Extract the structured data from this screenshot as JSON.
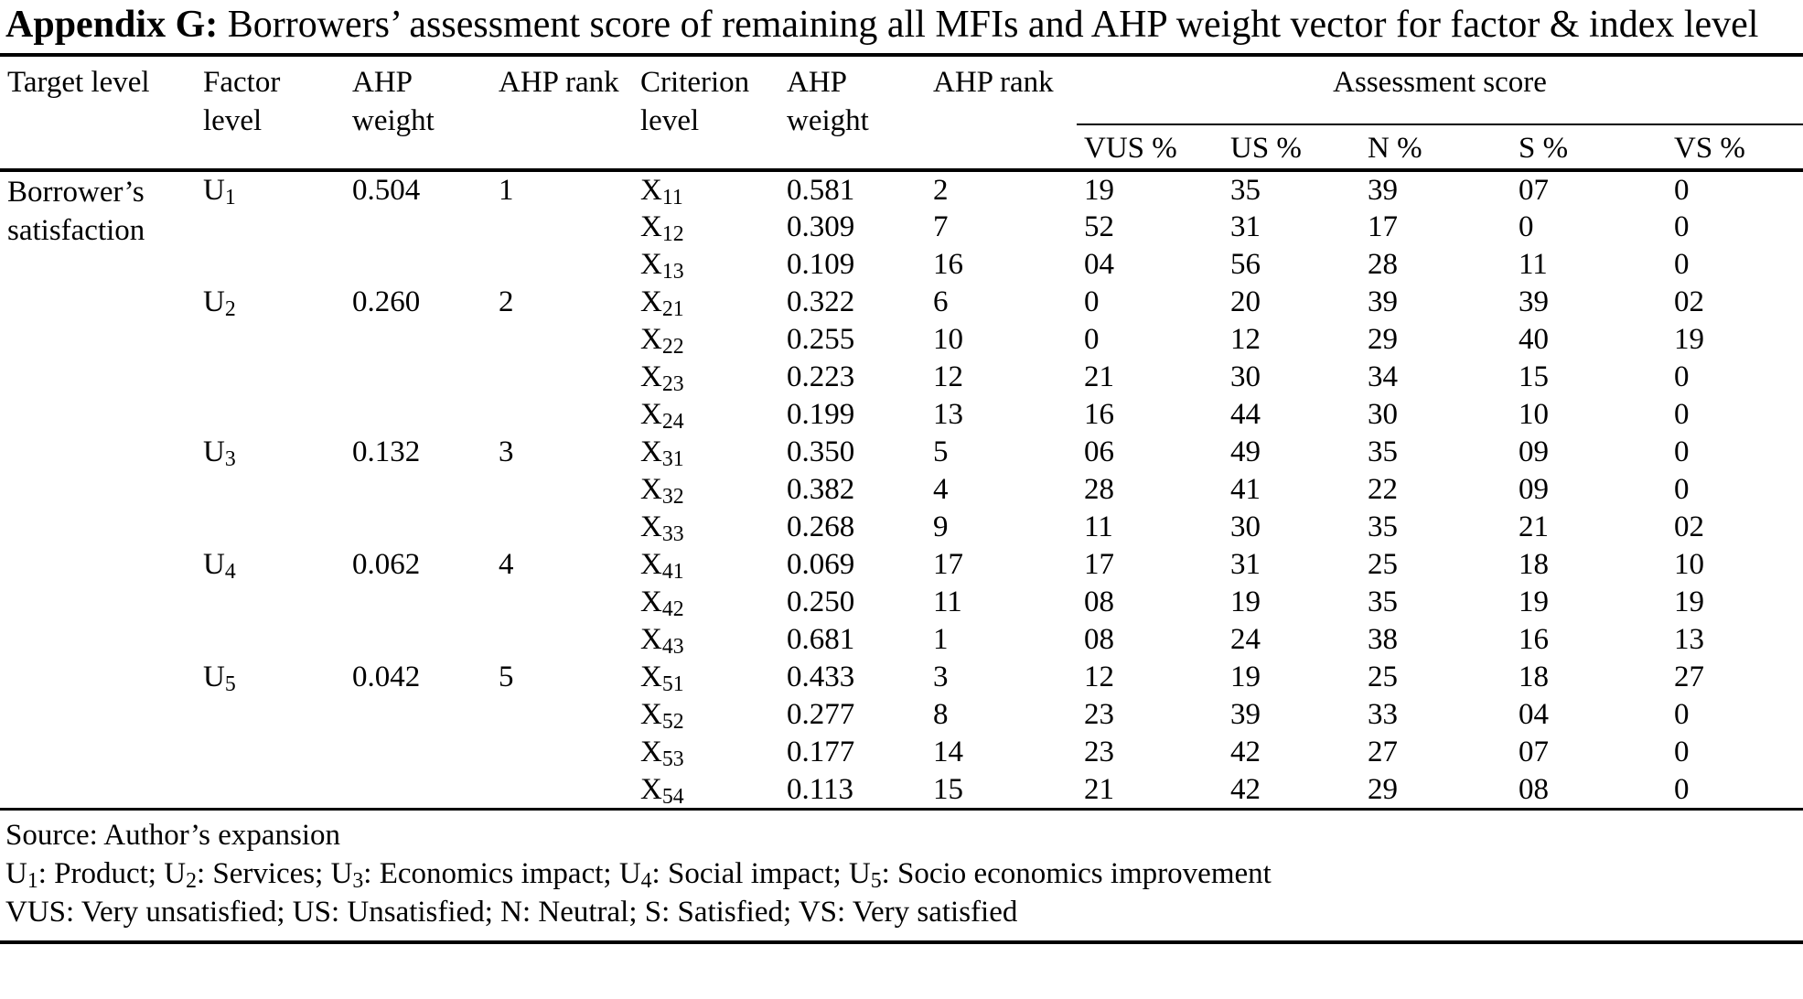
{
  "title": {
    "bold": "Appendix G:",
    "rest": " Borrowers’ assessment score of remaining all MFIs and AHP weight vector for factor & index level"
  },
  "table": {
    "headers": {
      "target": "Target level",
      "factor": "Factor level",
      "factor_ahp_weight": "AHP weight",
      "factor_ahp_rank": "AHP rank",
      "criterion": "Criterion level",
      "criterion_ahp_weight": "AHP weight",
      "criterion_ahp_rank": "AHP rank",
      "assessment_score": "Assessment score",
      "score_cols": [
        "VUS %",
        "US %",
        "N %",
        "S %",
        "VS %"
      ]
    },
    "target_label": "Borrower’s satisfaction",
    "rows": [
      {
        "factor_base": "U",
        "factor_sub": "1",
        "factor_weight": "0.504",
        "factor_rank": "1",
        "criterion_base": "X",
        "criterion_sub": "11",
        "criterion_weight": "0.581",
        "criterion_rank": "2",
        "scores": [
          "19",
          "35",
          "39",
          "07",
          "0"
        ]
      },
      {
        "criterion_base": "X",
        "criterion_sub": "12",
        "criterion_weight": "0.309",
        "criterion_rank": "7",
        "scores": [
          "52",
          "31",
          "17",
          "0",
          "0"
        ]
      },
      {
        "criterion_base": "X",
        "criterion_sub": "13",
        "criterion_weight": "0.109",
        "criterion_rank": "16",
        "scores": [
          "04",
          "56",
          "28",
          "11",
          "0"
        ]
      },
      {
        "factor_base": "U",
        "factor_sub": "2",
        "factor_weight": "0.260",
        "factor_rank": "2",
        "criterion_base": "X",
        "criterion_sub": "21",
        "criterion_weight": "0.322",
        "criterion_rank": "6",
        "scores": [
          "0",
          "20",
          "39",
          "39",
          "02"
        ]
      },
      {
        "criterion_base": "X",
        "criterion_sub": "22",
        "criterion_weight": "0.255",
        "criterion_rank": "10",
        "scores": [
          "0",
          "12",
          "29",
          "40",
          "19"
        ]
      },
      {
        "criterion_base": "X",
        "criterion_sub": "23",
        "criterion_weight": "0.223",
        "criterion_rank": "12",
        "scores": [
          "21",
          "30",
          "34",
          "15",
          "0"
        ]
      },
      {
        "criterion_base": "X",
        "criterion_sub": "24",
        "criterion_weight": "0.199",
        "criterion_rank": "13",
        "scores": [
          "16",
          "44",
          "30",
          "10",
          "0"
        ]
      },
      {
        "factor_base": "U",
        "factor_sub": "3",
        "factor_weight": "0.132",
        "factor_rank": "3",
        "criterion_base": "X",
        "criterion_sub": "31",
        "criterion_weight": "0.350",
        "criterion_rank": "5",
        "scores": [
          "06",
          "49",
          "35",
          "09",
          "0"
        ]
      },
      {
        "criterion_base": "X",
        "criterion_sub": "32",
        "criterion_weight": "0.382",
        "criterion_rank": "4",
        "scores": [
          "28",
          "41",
          "22",
          "09",
          "0"
        ]
      },
      {
        "criterion_base": "X",
        "criterion_sub": "33",
        "criterion_weight": "0.268",
        "criterion_rank": "9",
        "scores": [
          "11",
          "30",
          "35",
          "21",
          "02"
        ]
      },
      {
        "factor_base": "U",
        "factor_sub": "4",
        "factor_weight": "0.062",
        "factor_rank": "4",
        "criterion_base": "X",
        "criterion_sub": "41",
        "criterion_weight": "0.069",
        "criterion_rank": "17",
        "scores": [
          "17",
          "31",
          "25",
          "18",
          "10"
        ]
      },
      {
        "criterion_base": "X",
        "criterion_sub": "42",
        "criterion_weight": "0.250",
        "criterion_rank": "11",
        "scores": [
          "08",
          "19",
          "35",
          "19",
          "19"
        ]
      },
      {
        "criterion_base": "X",
        "criterion_sub": "43",
        "criterion_weight": "0.681",
        "criterion_rank": "1",
        "scores": [
          "08",
          "24",
          "38",
          "16",
          "13"
        ]
      },
      {
        "factor_base": "U",
        "factor_sub": "5",
        "factor_weight": "0.042",
        "factor_rank": "5",
        "criterion_base": "X",
        "criterion_sub": "51",
        "criterion_weight": "0.433",
        "criterion_rank": "3",
        "scores": [
          "12",
          "19",
          "25",
          "18",
          "27"
        ]
      },
      {
        "criterion_base": "X",
        "criterion_sub": "52",
        "criterion_weight": "0.277",
        "criterion_rank": "8",
        "scores": [
          "23",
          "39",
          "33",
          "04",
          "0"
        ]
      },
      {
        "criterion_base": "X",
        "criterion_sub": "53",
        "criterion_weight": "0.177",
        "criterion_rank": "14",
        "scores": [
          "23",
          "42",
          "27",
          "07",
          "0"
        ]
      },
      {
        "criterion_base": "X",
        "criterion_sub": "54",
        "criterion_weight": "0.113",
        "criterion_rank": "15",
        "scores": [
          "21",
          "42",
          "29",
          "08",
          "0"
        ]
      }
    ]
  },
  "footnotes": {
    "source": "Source: Author’s expansion",
    "legend_factors": [
      {
        "base": "U",
        "sub": "1",
        "text": ": Product; "
      },
      {
        "base": "U",
        "sub": "2",
        "text": ": Services; "
      },
      {
        "base": "U",
        "sub": "3",
        "text": ": Economics impact; "
      },
      {
        "base": "U",
        "sub": "4",
        "text": ": Social impact; "
      },
      {
        "base": "U",
        "sub": "5",
        "text": ": Socio economics improvement"
      }
    ],
    "legend_scores": "VUS: Very unsatisfied; US: Unsatisfied; N: Neutral; S: Satisfied; VS: Very satisfied"
  }
}
